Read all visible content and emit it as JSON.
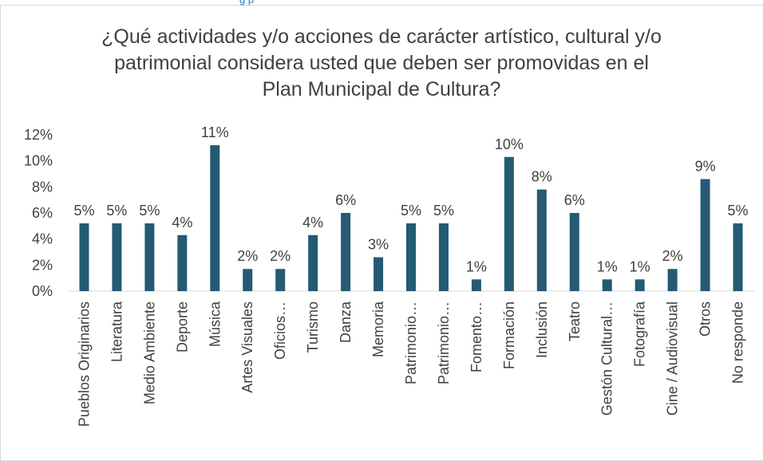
{
  "header": {
    "fragment": "g                             p"
  },
  "chart_data": {
    "type": "bar",
    "title_lines": [
      "¿Qué actividades y/o acciones de carácter artístico, cultural y/o",
      "patrimonial considera usted que deben ser promovidas en el",
      "Plan Municipal de Cultura?"
    ],
    "categories": [
      "Pueblos Originarios",
      "Literatura",
      "Medio Ambiente",
      "Deporte",
      "Música",
      "Artes Visuales",
      "Oficios…",
      "Turismo",
      "Danza",
      "Memoria",
      "Patrimonio…",
      "Patrimonio…",
      "Fomento…",
      "Formación",
      "Inclusión",
      "Teatro",
      "Gestón Cultural…",
      "Fotografía",
      "Cine / Audiovisual",
      "Otros",
      "No responde"
    ],
    "values": [
      5.2,
      5.2,
      5.2,
      4.3,
      11.2,
      1.7,
      1.7,
      4.3,
      6.0,
      2.6,
      5.2,
      5.2,
      0.9,
      10.3,
      7.8,
      6.0,
      0.9,
      0.9,
      1.7,
      8.6,
      5.2
    ],
    "data_labels": [
      "5%",
      "5%",
      "5%",
      "4%",
      "11%",
      "2%",
      "2%",
      "4%",
      "6%",
      "3%",
      "5%",
      "5%",
      "1%",
      "10%",
      "8%",
      "6%",
      "1%",
      "1%",
      "2%",
      "9%",
      "5%"
    ],
    "y_ticks": [
      0,
      2,
      4,
      6,
      8,
      10,
      12
    ],
    "y_tick_labels": [
      "0%",
      "2%",
      "4%",
      "6%",
      "8%",
      "10%",
      "12%"
    ],
    "ylim": [
      0,
      12
    ],
    "bar_color": "#245a73",
    "grid": false,
    "legend": "none"
  }
}
